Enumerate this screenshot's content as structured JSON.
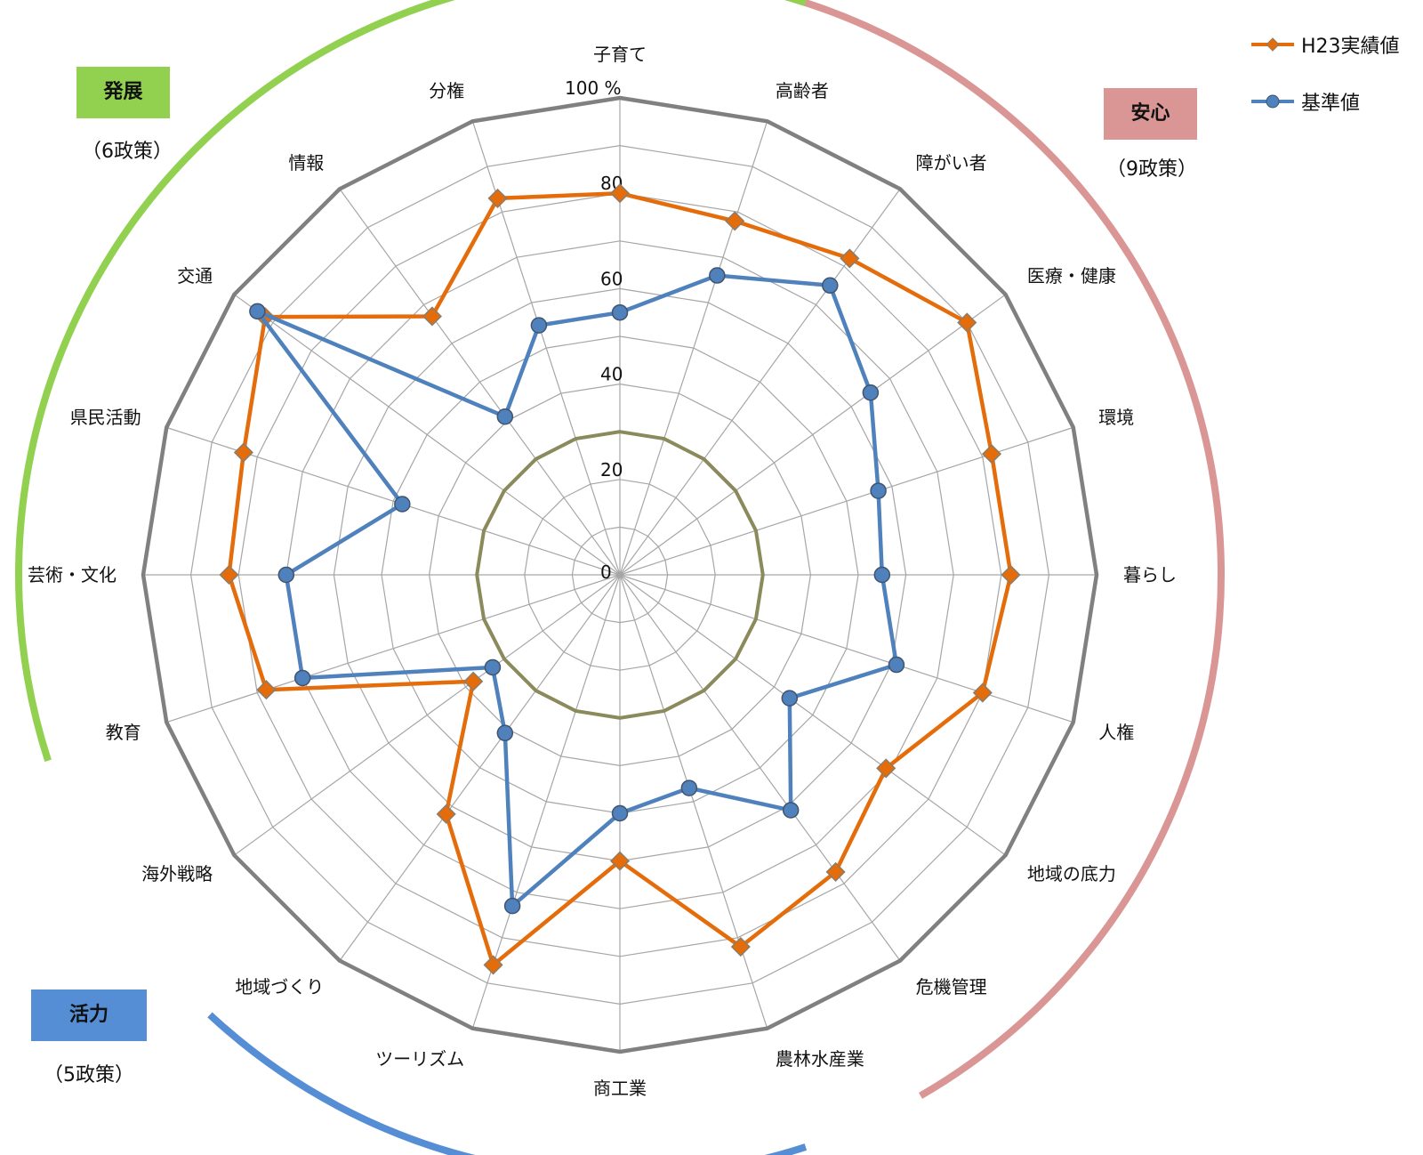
{
  "chart_data": {
    "type": "radar",
    "categories": [
      "子育て",
      "高齢者",
      "障がい者",
      "医療・健康",
      "環境",
      "暮らし",
      "人権",
      "地域の底力",
      "危機管理",
      "農林水産業",
      "商工業",
      "ツーリズム",
      "地域づくり",
      "海外戦略",
      "教育",
      "芸術・文化",
      "県民活動",
      "交通",
      "情報",
      "分権"
    ],
    "series": [
      {
        "name": "H23実績値",
        "color": "#E46C0A",
        "marker": "diamond",
        "values": [
          80,
          78,
          82,
          90,
          82,
          82,
          80,
          69,
          77,
          82,
          60,
          86,
          62,
          38,
          78,
          82,
          83,
          92,
          67,
          83
        ]
      },
      {
        "name": "基準値",
        "color": "#4F81BD",
        "marker": "circle",
        "values": [
          55,
          66,
          75,
          65,
          57,
          55,
          61,
          44,
          61,
          47,
          50,
          73,
          41,
          33,
          70,
          70,
          48,
          94,
          41,
          55
        ]
      }
    ],
    "reference": {
      "value": 30,
      "color": "#8B8A5C"
    },
    "rlim": [
      0,
      100
    ],
    "ticks": [
      "0",
      "20",
      "40",
      "60",
      "80",
      "100 %"
    ],
    "grid": true,
    "legend": "top-right",
    "groups": [
      {
        "label": "安心",
        "count": "（9政策）",
        "color": "#D99694"
      },
      {
        "label": "発展",
        "count": "（6政策）",
        "color": "#92D050"
      },
      {
        "label": "活力",
        "count": "（5政策）",
        "color": "#558ED5"
      }
    ]
  }
}
